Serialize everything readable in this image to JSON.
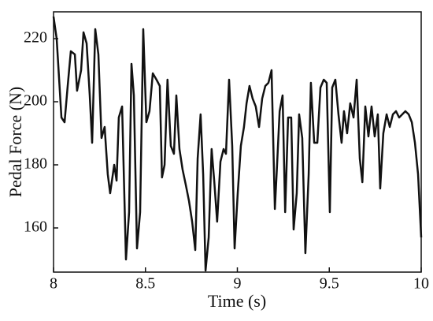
{
  "chart_data": {
    "type": "line",
    "x_label": "Time (s)",
    "y_label": "Pedal Force (N)",
    "xlim": [
      8,
      10
    ],
    "xticks": [
      8,
      8.5,
      9,
      9.5,
      10
    ],
    "ylim": [
      146,
      228.5
    ],
    "yticks": [
      160,
      180,
      200,
      220
    ],
    "series": [
      {
        "color": "#111111",
        "x": [
          8.0,
          8.017,
          8.043,
          8.06,
          8.077,
          8.094,
          8.116,
          8.128,
          8.15,
          8.163,
          8.18,
          8.197,
          8.21,
          8.227,
          8.244,
          8.261,
          8.278,
          8.295,
          8.308,
          8.33,
          8.343,
          8.355,
          8.373,
          8.394,
          8.411,
          8.424,
          8.437,
          8.454,
          8.471,
          8.488,
          8.505,
          8.522,
          8.54,
          8.56,
          8.578,
          8.59,
          8.604,
          8.62,
          8.638,
          8.655,
          8.668,
          8.685,
          8.702,
          8.72,
          8.737,
          8.754,
          8.771,
          8.784,
          8.8,
          8.814,
          8.827,
          8.844,
          8.86,
          8.874,
          8.89,
          8.908,
          8.925,
          8.938,
          8.955,
          8.972,
          8.985,
          9.002,
          9.019,
          9.036,
          9.05,
          9.066,
          9.083,
          9.1,
          9.118,
          9.135,
          9.152,
          9.169,
          9.186,
          9.204,
          9.216,
          9.23,
          9.246,
          9.26,
          9.276,
          9.293,
          9.306,
          9.323,
          9.336,
          9.353,
          9.37,
          9.388,
          9.4,
          9.418,
          9.435,
          9.452,
          9.47,
          9.486,
          9.503,
          9.516,
          9.533,
          9.55,
          9.567,
          9.58,
          9.597,
          9.614,
          9.632,
          9.649,
          9.666,
          9.68,
          9.696,
          9.713,
          9.73,
          9.747,
          9.764,
          9.777,
          9.794,
          9.812,
          9.829,
          9.846,
          9.863,
          9.88,
          9.897,
          9.914,
          9.932,
          9.949,
          9.966,
          9.983,
          10.0
        ],
        "values": [
          227,
          220,
          195,
          193.5,
          205,
          216,
          215,
          203.5,
          210,
          222,
          218.5,
          202,
          187,
          223,
          215,
          188.5,
          192,
          177,
          171,
          180,
          175,
          195,
          198.5,
          150,
          165,
          212,
          202,
          153.5,
          165,
          223,
          193.5,
          197,
          209,
          207,
          205,
          176,
          180,
          207,
          186,
          183.5,
          202,
          185,
          178.5,
          173.5,
          168.5,
          162,
          153,
          182,
          196,
          177,
          146.5,
          157,
          185,
          175,
          162,
          181,
          185,
          183.5,
          207,
          186,
          153.5,
          171,
          186,
          192,
          199.5,
          205,
          201,
          198.5,
          192,
          201,
          205,
          206,
          210,
          166,
          180,
          197,
          202,
          165,
          195,
          195,
          159.5,
          171,
          196,
          188.5,
          152,
          177,
          206,
          187,
          187,
          204.5,
          207,
          206,
          165,
          204.5,
          207,
          196,
          187,
          197,
          190,
          199.5,
          195,
          207,
          182,
          174.5,
          198.5,
          189,
          198.5,
          189,
          196,
          172.5,
          190,
          196,
          192,
          196,
          197,
          195,
          196,
          197,
          196,
          193.5,
          187,
          177,
          157
        ]
      }
    ]
  }
}
